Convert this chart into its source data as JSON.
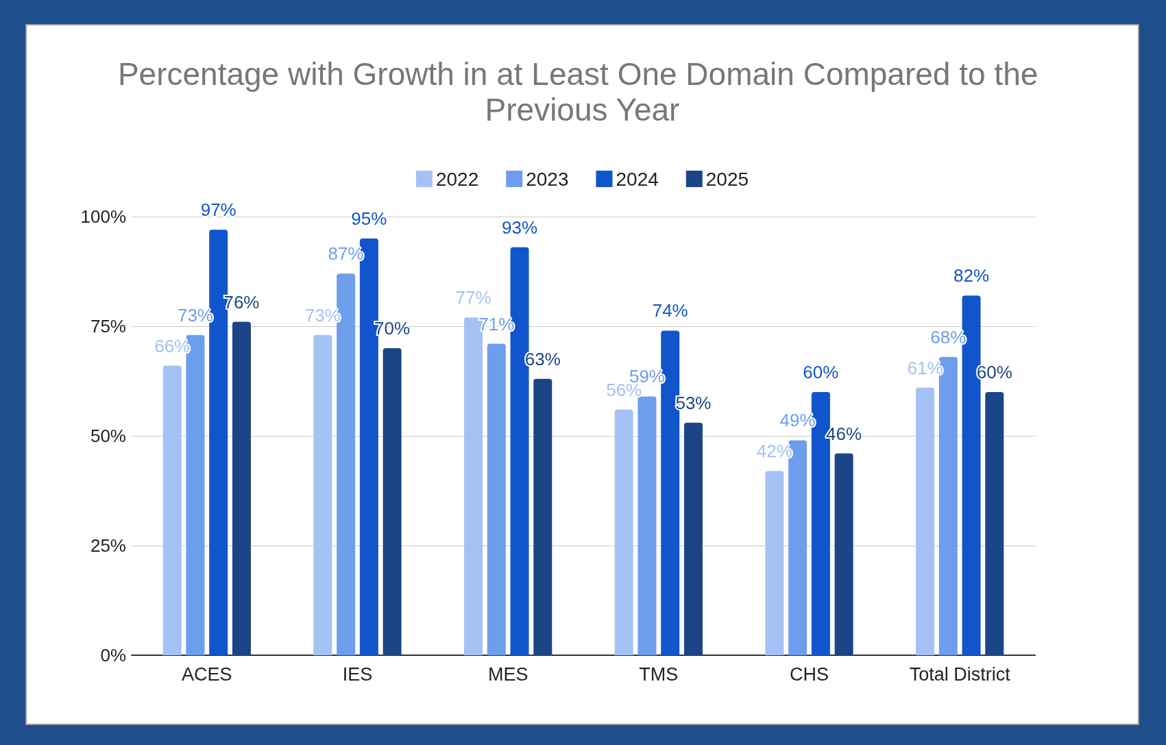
{
  "chart_data": {
    "type": "bar",
    "title": "Percentage with Growth in at Least One Domain Compared to the Previous Year",
    "categories": [
      "ACES",
      "IES",
      "MES",
      "TMS",
      "CHS",
      "Total District"
    ],
    "series": [
      {
        "name": "2022",
        "color": "#a4c2f4",
        "values": [
          66,
          73,
          77,
          56,
          42,
          61
        ],
        "value_labels": [
          "66%",
          "73%",
          "77%",
          "56%",
          "42%",
          "61%"
        ]
      },
      {
        "name": "2023",
        "color": "#6d9eeb",
        "values": [
          73,
          87,
          71,
          59,
          49,
          68
        ],
        "value_labels": [
          "73%",
          "87%",
          "71%",
          "59%",
          "49%",
          "68%"
        ]
      },
      {
        "name": "2024",
        "color": "#1155cc",
        "values": [
          97,
          95,
          93,
          74,
          60,
          82
        ],
        "value_labels": [
          "97%",
          "95%",
          "93%",
          "74%",
          "60%",
          "82%"
        ]
      },
      {
        "name": "2025",
        "color": "#1c4587",
        "values": [
          76,
          70,
          63,
          53,
          46,
          60
        ],
        "value_labels": [
          "76%",
          "70%",
          "63%",
          "53%",
          "46%",
          "60%"
        ]
      }
    ],
    "ylim": [
      0,
      100
    ],
    "yticks": [
      {
        "value": 0,
        "label": "0%"
      },
      {
        "value": 25,
        "label": "25%"
      },
      {
        "value": 50,
        "label": "50%"
      },
      {
        "value": 75,
        "label": "75%"
      },
      {
        "value": 100,
        "label": "100%"
      }
    ],
    "grid": "y",
    "legend": "top"
  }
}
